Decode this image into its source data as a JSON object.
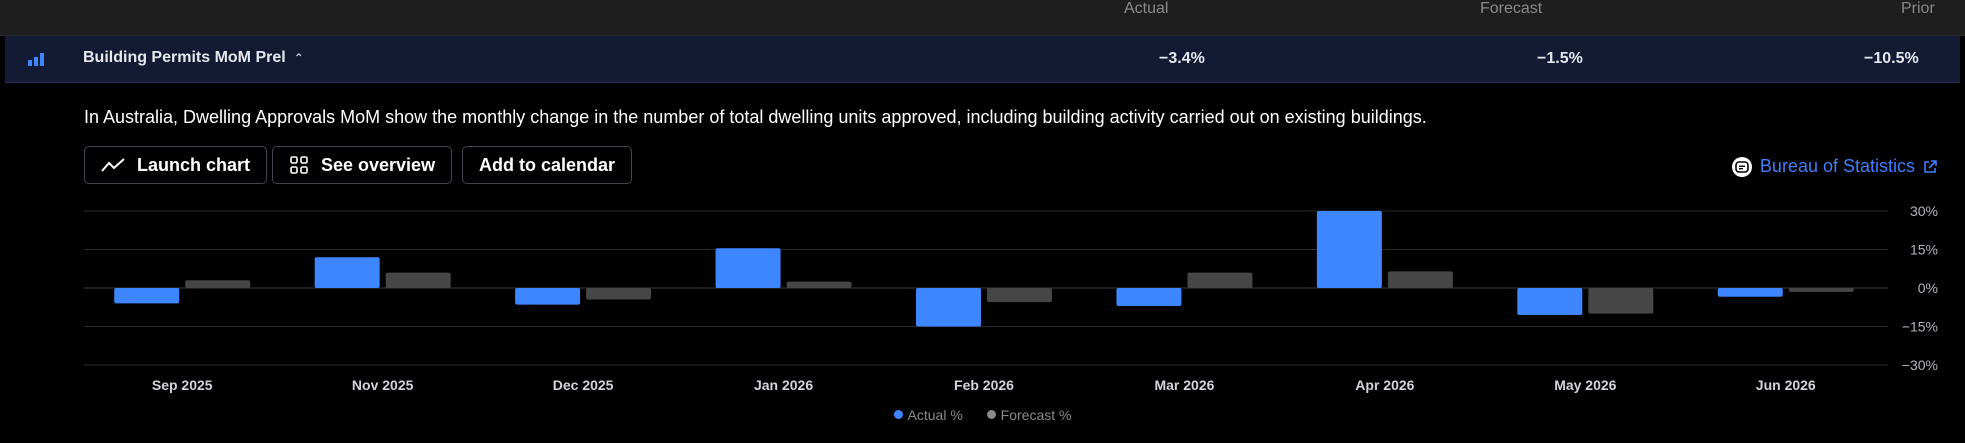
{
  "columns": {
    "actual": "Actual",
    "forecast": "Forecast",
    "prior": "Prior"
  },
  "event": {
    "title": "Building Permits MoM Prel",
    "caret": "^",
    "actual": "−3.4%",
    "forecast": "−1.5%",
    "prior": "−10.5%",
    "icon": "bar-chart-icon"
  },
  "description": "In Australia, Dwelling Approvals MoM show the monthly change in the number of total dwelling units approved, including building activity carried out on existing buildings.",
  "buttons": {
    "launch_chart": "Launch chart",
    "see_overview": "See overview",
    "add_to_calendar": "Add to calendar"
  },
  "source": {
    "label": "Bureau of Statistics",
    "icon": "source-icon",
    "external_icon": "external-link-icon"
  },
  "colors": {
    "actual": "#3d86ff",
    "forecast": "#464646",
    "grid": "#2b2b2b",
    "axis_text": "#b2b5be",
    "accent": "#3f7fff"
  },
  "chart_data": {
    "type": "bar",
    "categories": [
      "Sep 2025",
      "Nov 2025",
      "Dec 2025",
      "Jan 2026",
      "Feb 2026",
      "Mar 2026",
      "Apr 2026",
      "May 2026",
      "Jun 2026"
    ],
    "series": [
      {
        "name": "Actual %",
        "values": [
          -6,
          12,
          -6.5,
          15.5,
          -15,
          -7,
          30,
          -10.5,
          -3.4
        ]
      },
      {
        "name": "Forecast %",
        "values": [
          3,
          6,
          -4.5,
          2.5,
          -5.5,
          6,
          6.5,
          -10,
          -1.5
        ]
      }
    ],
    "yticks": [
      "30%",
      "15%",
      "0%",
      "−15%",
      "−30%"
    ],
    "ylim": [
      -30,
      30
    ],
    "grid": true,
    "legend": "bottom-center"
  }
}
